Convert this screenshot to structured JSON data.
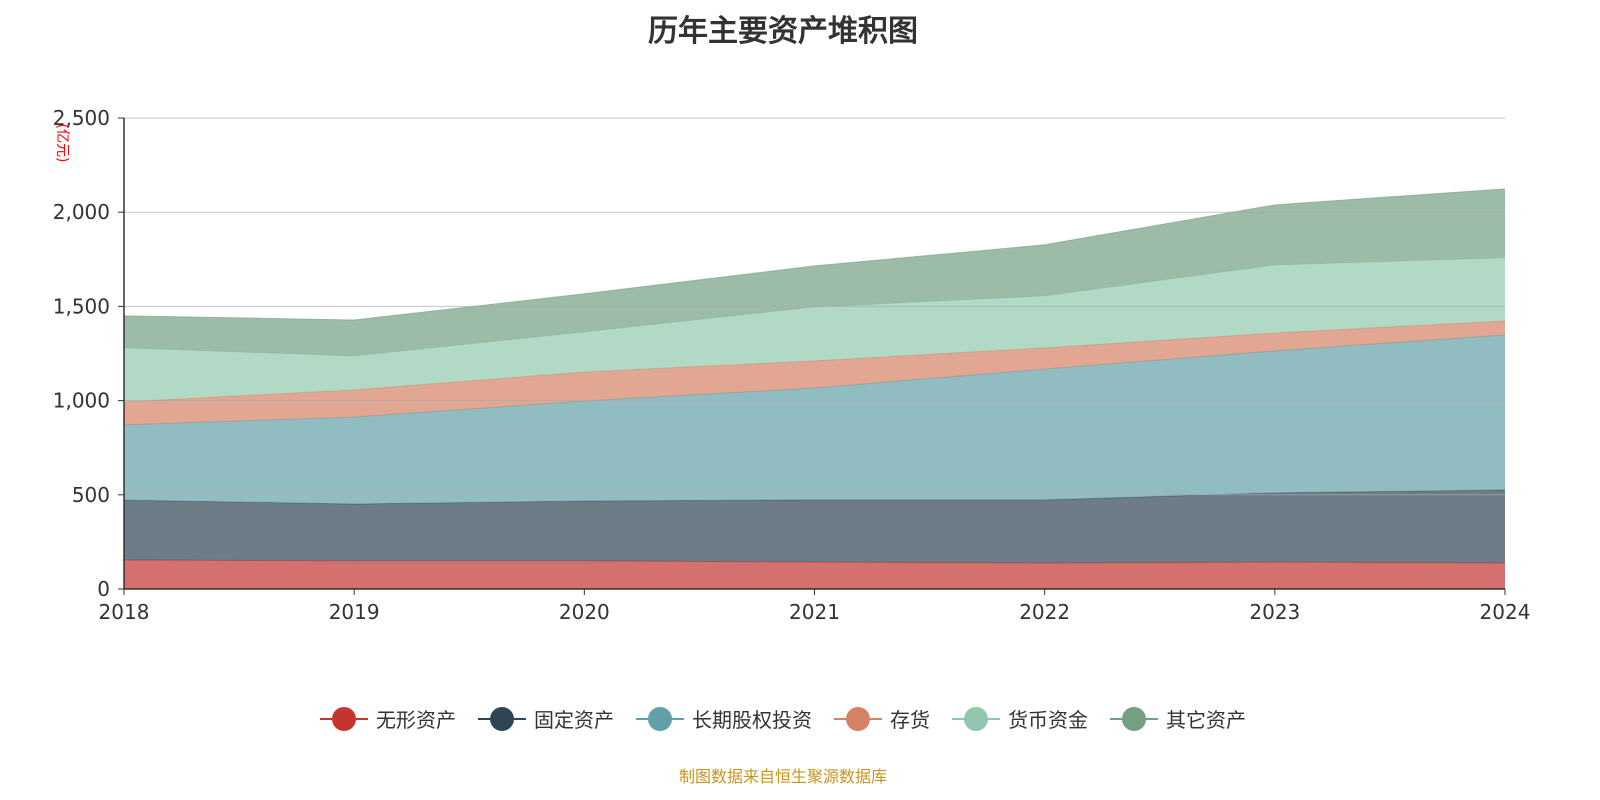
{
  "title": "历年主要资产堆积图",
  "source": "制图数据来自恒生聚源数据库",
  "chart_data": {
    "type": "area",
    "stacked": true,
    "title": "历年主要资产堆积图",
    "ylabel": "(亿元)",
    "xlabel": "",
    "categories": [
      "2018",
      "2019",
      "2020",
      "2021",
      "2022",
      "2023",
      "2024"
    ],
    "ylim": [
      0,
      2500
    ],
    "yticks": [
      0,
      500,
      1000,
      1500,
      2000,
      2500
    ],
    "ytick_labels": [
      "0",
      "500",
      "1,000",
      "1,500",
      "2,000",
      "2,500"
    ],
    "grid": true,
    "legend_position": "bottom",
    "series": [
      {
        "name": "无形资产",
        "color": "#c23531",
        "values": [
          154,
          149,
          149,
          143,
          138,
          143,
          138
        ]
      },
      {
        "name": "固定资产",
        "color": "#2f4554",
        "values": [
          318,
          302,
          318,
          330,
          335,
          367,
          388
        ]
      },
      {
        "name": "长期股权投资",
        "color": "#61a0a8",
        "values": [
          399,
          462,
          531,
          594,
          695,
          754,
          823
        ]
      },
      {
        "name": "存货",
        "color": "#d48265",
        "values": [
          122,
          144,
          154,
          144,
          112,
          95,
          74
        ]
      },
      {
        "name": "货币资金",
        "color": "#91c7ae",
        "values": [
          287,
          180,
          213,
          286,
          276,
          361,
          335
        ]
      },
      {
        "name": "其它资产",
        "color": "#749f83",
        "values": [
          170,
          191,
          202,
          218,
          271,
          319,
          366
        ]
      }
    ]
  }
}
